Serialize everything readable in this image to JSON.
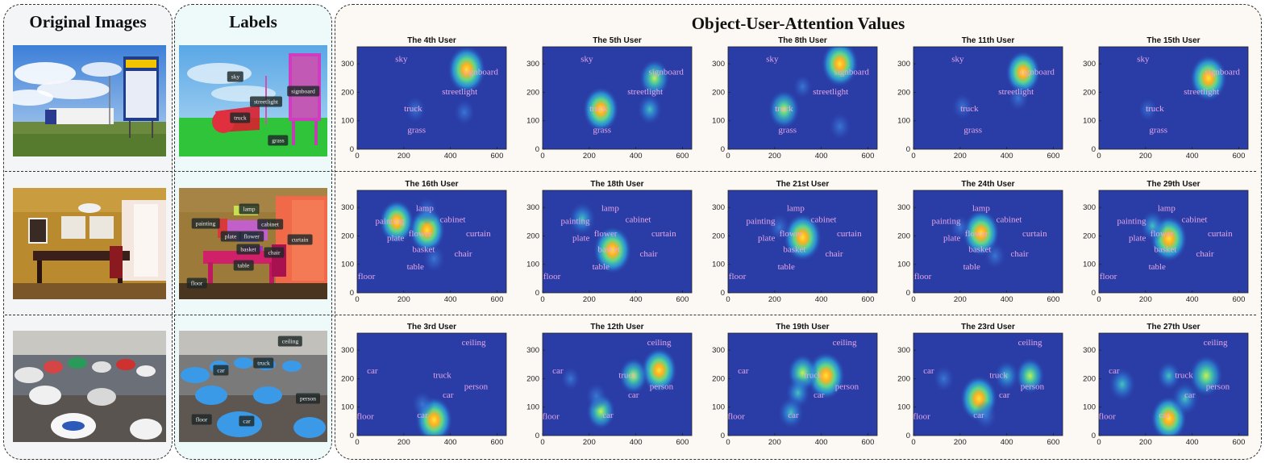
{
  "headings": {
    "original": "Original Images",
    "labels": "Labels",
    "attention": "Object-User-Attention Values"
  },
  "axis": {
    "x_ticks": [
      0,
      200,
      400,
      600
    ],
    "y_ticks": [
      0,
      100,
      200,
      300
    ],
    "xlim": [
      0,
      640
    ],
    "ylim": [
      0,
      360
    ]
  },
  "colors": {
    "heat_bg": "#2a3ca6",
    "object_label": "#e6a6e6",
    "panel_fill_left": "#f4f5f7",
    "panel_fill_labels": "#eefaf9",
    "panel_fill_right": "#fcf8f3"
  },
  "rows": [
    {
      "scene": "roadside",
      "mask_labels": [
        "sky",
        "streetlight",
        "signboard",
        "truck",
        "grass"
      ],
      "objects": [
        {
          "name": "sky",
          "x": 190,
          "y": 315
        },
        {
          "name": "signboard",
          "x": 530,
          "y": 270
        },
        {
          "name": "streetlight",
          "x": 440,
          "y": 200
        },
        {
          "name": "truck",
          "x": 240,
          "y": 140
        },
        {
          "name": "grass",
          "x": 255,
          "y": 65
        }
      ],
      "users": [
        {
          "title": "The 4th User",
          "hotspots": [
            [
              470,
              280,
              1.0
            ],
            [
              460,
              130,
              0.3
            ],
            [
              250,
              140,
              0.3
            ]
          ]
        },
        {
          "title": "The 5th User",
          "hotspots": [
            [
              250,
              140,
              0.9
            ],
            [
              480,
              250,
              0.65
            ],
            [
              460,
              140,
              0.45
            ]
          ]
        },
        {
          "title": "The 8th User",
          "hotspots": [
            [
              480,
              300,
              0.95
            ],
            [
              240,
              140,
              0.7
            ],
            [
              480,
              80,
              0.35
            ],
            [
              320,
              220,
              0.2
            ]
          ]
        },
        {
          "title": "The 11th User",
          "hotspots": [
            [
              470,
              270,
              0.85
            ],
            [
              210,
              150,
              0.3
            ],
            [
              450,
              180,
              0.3
            ]
          ]
        },
        {
          "title": "The 15th User",
          "hotspots": [
            [
              470,
              250,
              0.95
            ],
            [
              210,
              140,
              0.2
            ]
          ]
        }
      ]
    },
    {
      "scene": "dining",
      "mask_labels": [
        "lamp",
        "painting",
        "cabinet",
        "plate",
        "flower",
        "basket",
        "curtain",
        "table",
        "chair",
        "floor"
      ],
      "objects": [
        {
          "name": "lamp",
          "x": 290,
          "y": 295
        },
        {
          "name": "painting",
          "x": 140,
          "y": 250
        },
        {
          "name": "cabinet",
          "x": 410,
          "y": 255
        },
        {
          "name": "flower",
          "x": 270,
          "y": 205
        },
        {
          "name": "curtain",
          "x": 520,
          "y": 205
        },
        {
          "name": "plate",
          "x": 165,
          "y": 190
        },
        {
          "name": "basket",
          "x": 285,
          "y": 150
        },
        {
          "name": "chair",
          "x": 455,
          "y": 135
        },
        {
          "name": "table",
          "x": 250,
          "y": 90
        },
        {
          "name": "floor",
          "x": 40,
          "y": 55
        }
      ],
      "users": [
        {
          "title": "The 16th User",
          "hotspots": [
            [
              170,
              250,
              0.85
            ],
            [
              300,
              220,
              0.9
            ],
            [
              330,
              120,
              0.35
            ],
            [
              300,
              290,
              0.3
            ]
          ]
        },
        {
          "title": "The 18th User",
          "hotspots": [
            [
              300,
              150,
              1.0
            ],
            [
              170,
              260,
              0.55
            ]
          ]
        },
        {
          "title": "The 21st User",
          "hotspots": [
            [
              320,
              195,
              1.0
            ],
            [
              220,
              230,
              0.35
            ]
          ]
        },
        {
          "title": "The 24th User",
          "hotspots": [
            [
              290,
              210,
              0.95
            ],
            [
              350,
              130,
              0.3
            ],
            [
              200,
              230,
              0.25
            ]
          ]
        },
        {
          "title": "The 29th User",
          "hotspots": [
            [
              300,
              190,
              0.95
            ],
            [
              230,
              235,
              0.45
            ]
          ]
        }
      ]
    },
    {
      "scene": "cars",
      "mask_labels": [
        "ceiling",
        "car",
        "truck",
        "person",
        "floor",
        "car"
      ],
      "objects": [
        {
          "name": "ceiling",
          "x": 500,
          "y": 325
        },
        {
          "name": "car",
          "x": 65,
          "y": 225
        },
        {
          "name": "truck",
          "x": 365,
          "y": 210
        },
        {
          "name": "person",
          "x": 510,
          "y": 170
        },
        {
          "name": "car",
          "x": 390,
          "y": 140
        },
        {
          "name": "floor",
          "x": 35,
          "y": 65
        },
        {
          "name": "car",
          "x": 280,
          "y": 70
        }
      ],
      "users": [
        {
          "title": "The 3rd User",
          "hotspots": [
            [
              330,
              55,
              0.95
            ],
            [
              280,
              110,
              0.3
            ]
          ]
        },
        {
          "title": "The 12th User",
          "hotspots": [
            [
              500,
              230,
              0.9
            ],
            [
              390,
              210,
              0.6
            ],
            [
              250,
              85,
              0.6
            ],
            [
              230,
              140,
              0.3
            ],
            [
              120,
              200,
              0.2
            ]
          ]
        },
        {
          "title": "The 19th User",
          "hotspots": [
            [
              420,
              210,
              1.0
            ],
            [
              320,
              220,
              0.65
            ],
            [
              300,
              150,
              0.45
            ],
            [
              270,
              80,
              0.5
            ]
          ]
        },
        {
          "title": "The 23rd User",
          "hotspots": [
            [
              280,
              130,
              0.95
            ],
            [
              500,
              210,
              0.6
            ],
            [
              400,
              210,
              0.45
            ],
            [
              310,
              70,
              0.35
            ],
            [
              130,
              200,
              0.3
            ]
          ]
        },
        {
          "title": "The 27th User",
          "hotspots": [
            [
              300,
              60,
              0.9
            ],
            [
              460,
              210,
              0.8
            ],
            [
              100,
              180,
              0.55
            ],
            [
              370,
              130,
              0.55
            ],
            [
              300,
              210,
              0.4
            ]
          ]
        }
      ]
    }
  ]
}
